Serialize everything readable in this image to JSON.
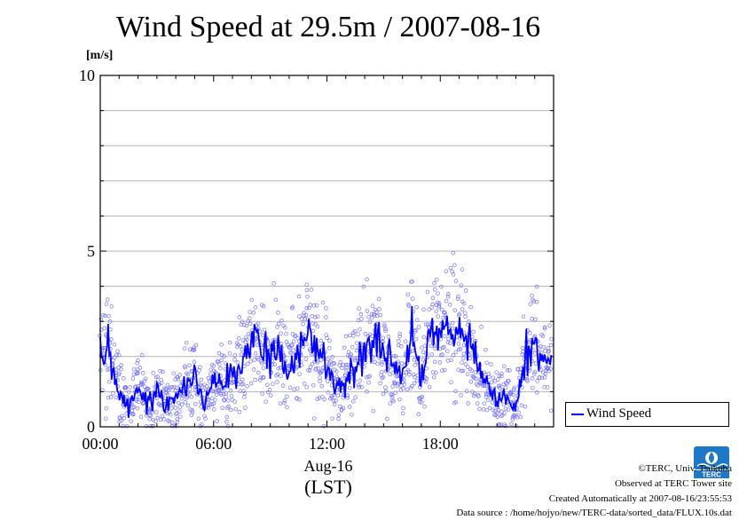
{
  "chart_data": {
    "type": "scatter",
    "title": "Wind Speed at 29.5m / 2007-08-16",
    "ylabel": "[m/s]",
    "ylim": [
      0,
      10
    ],
    "xlim_hours": [
      0,
      24
    ],
    "yticks": [
      {
        "value": 0,
        "label": "0"
      },
      {
        "value": 5,
        "label": "5"
      },
      {
        "value": 10,
        "label": "10"
      }
    ],
    "xticks": [
      {
        "value": 0,
        "label": "00:00"
      },
      {
        "value": 6,
        "label": "06:00"
      },
      {
        "value": 12,
        "label": "12:00"
      },
      {
        "value": 18,
        "label": "18:00"
      }
    ],
    "xsublabel": "Aug-16",
    "xunit": "(LST)",
    "grid": true,
    "legend_position": "right",
    "series": [
      {
        "name": "Wind Speed",
        "color": "#0000ff",
        "scatter_color": "#7070ff",
        "x": [
          0,
          0.5,
          1,
          1.5,
          2,
          2.5,
          3,
          3.5,
          4,
          4.5,
          5,
          5.5,
          6,
          6.5,
          7,
          7.5,
          8,
          8.5,
          9,
          9.5,
          10,
          10.5,
          11,
          11.5,
          12,
          12.5,
          13,
          13.5,
          14,
          14.5,
          15,
          15.5,
          16,
          16.5,
          17,
          17.5,
          18,
          18.5,
          19,
          19.5,
          20,
          20.5,
          21,
          21.5,
          22,
          22.5,
          23,
          23.5
        ],
        "y": [
          2.0,
          2.2,
          1.0,
          0.6,
          1.2,
          0.7,
          1.3,
          0.6,
          0.8,
          1.2,
          1.5,
          0.7,
          1.3,
          1.2,
          1.6,
          1.8,
          2.3,
          2.4,
          1.8,
          2.2,
          1.5,
          2.1,
          2.8,
          2.0,
          1.8,
          1.1,
          1.4,
          1.7,
          2.1,
          2.5,
          2.2,
          1.7,
          1.5,
          2.7,
          1.3,
          2.6,
          3.0,
          2.6,
          2.9,
          2.6,
          1.7,
          1.1,
          0.8,
          0.9,
          0.6,
          2.0,
          2.5,
          1.8
        ]
      }
    ]
  },
  "legend": {
    "label": "Wind Speed"
  },
  "credits": {
    "copyright": "©TERC, Univ. Tsukuba",
    "observed": "Observed at TERC Tower site",
    "created": "Created Automatically at 2007-08-16/23:55:53",
    "source": "Data source : /home/hojyo/new/TERC-data/sorted_data/FLUX.10s.dat"
  },
  "logo": {
    "name": "terc-logo",
    "text": "TERC",
    "color": "#1e78c8"
  }
}
